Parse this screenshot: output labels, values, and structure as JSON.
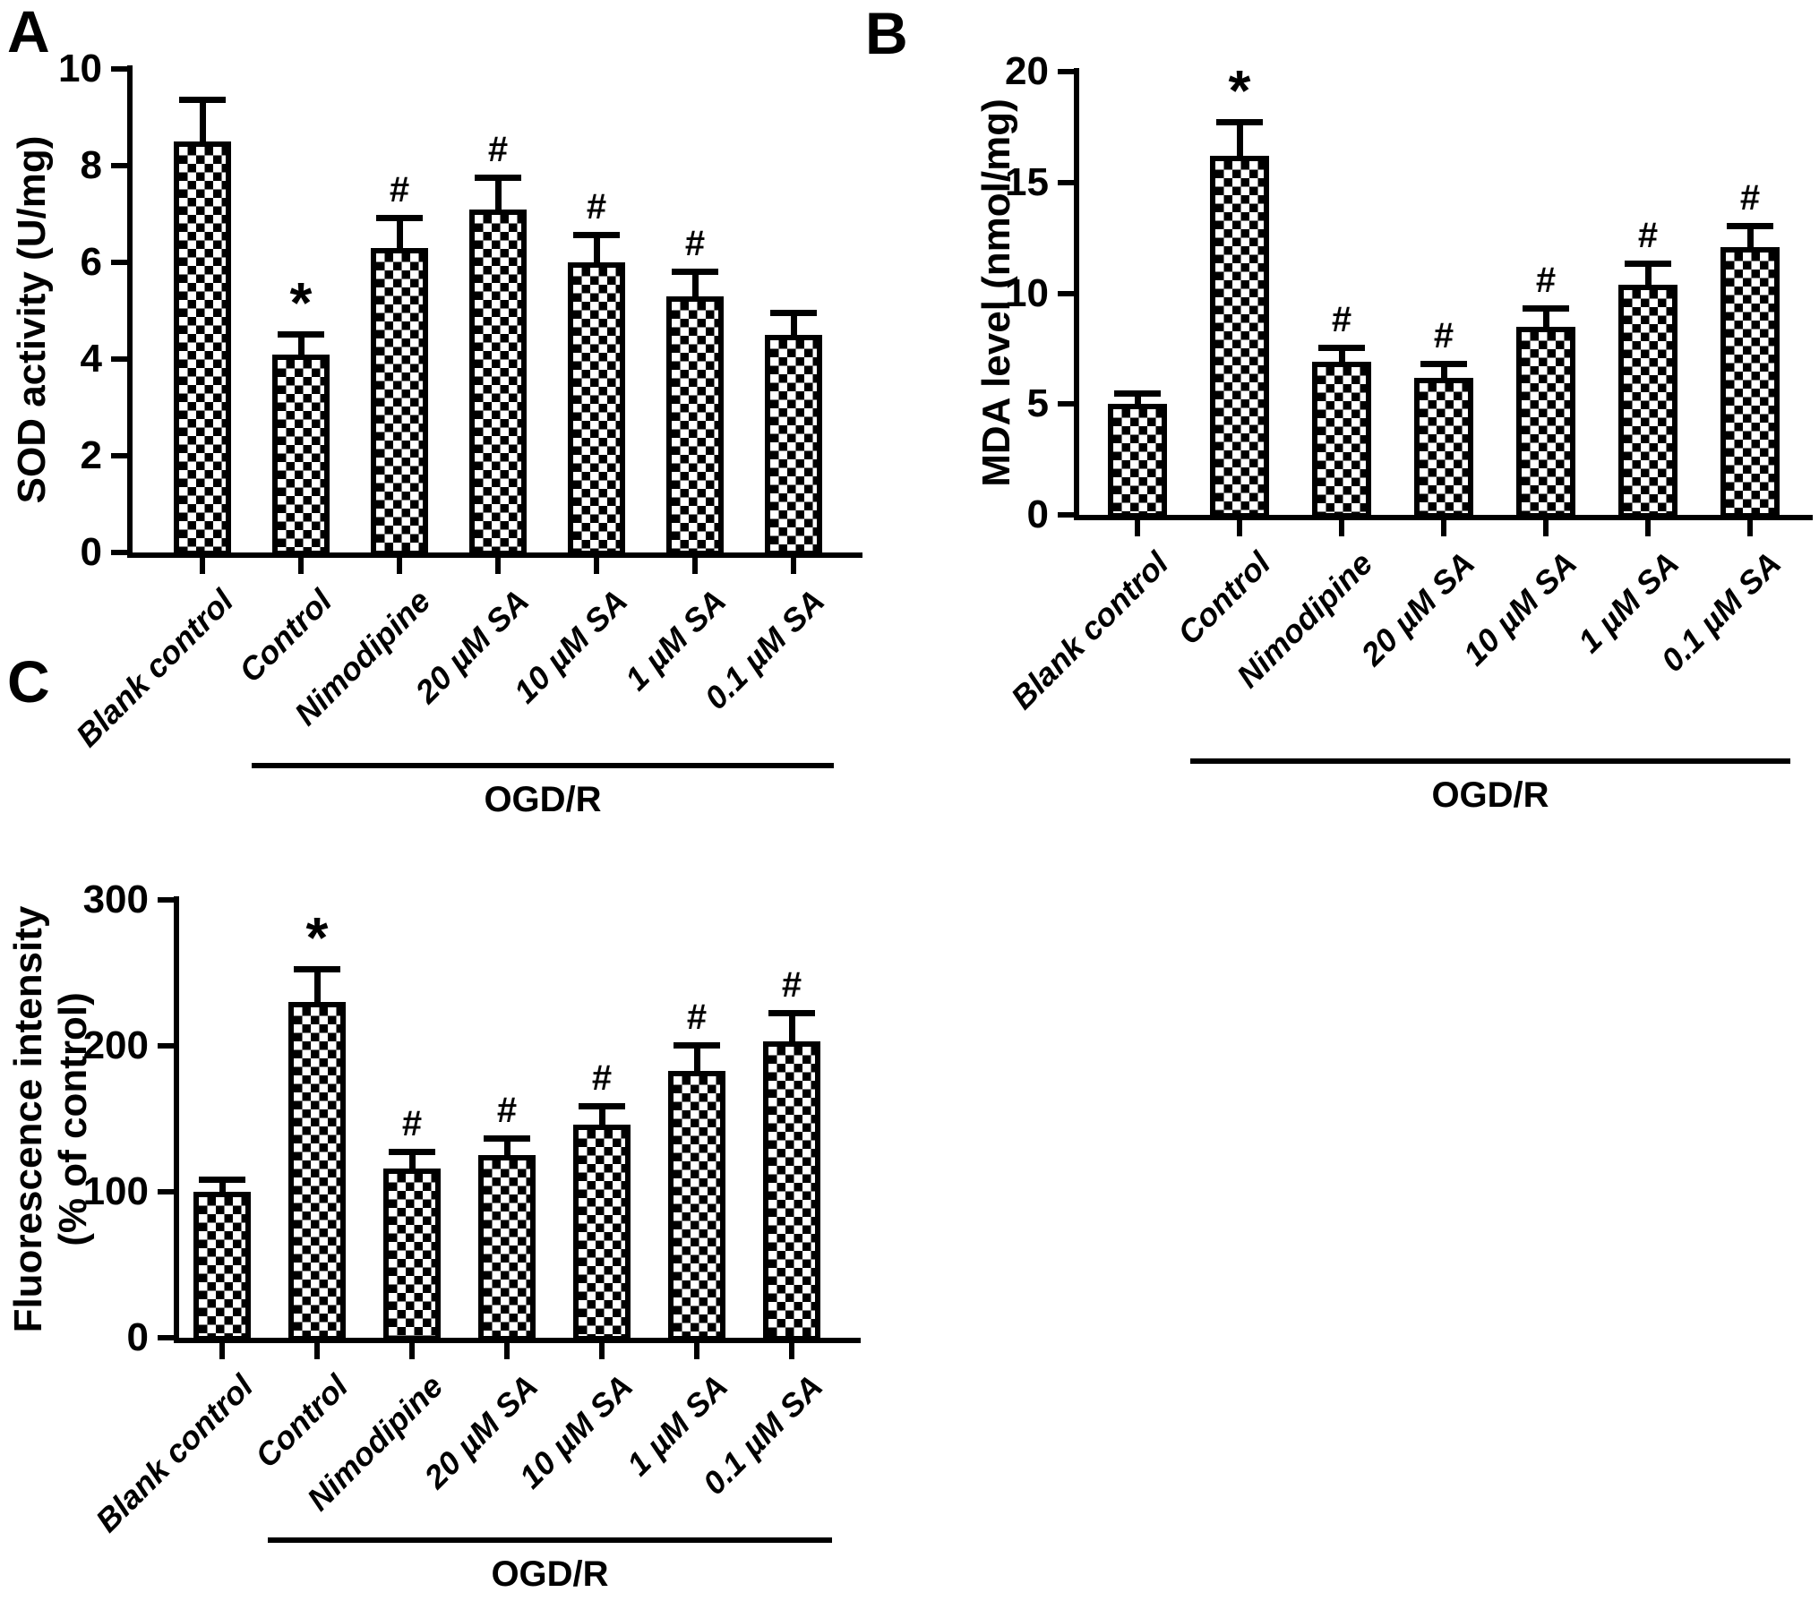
{
  "figure": {
    "background": "#ffffff",
    "ink_color": "#000000",
    "panel_letters": [
      "A",
      "B",
      "C"
    ],
    "group_label": "OGD/R"
  },
  "chart_data": [
    {
      "type": "bar",
      "panel_letter": "A",
      "title": "",
      "xlabel": "",
      "ylabel": "SOD activity (U/mg)",
      "ylabel_lines": [
        "SOD activity (U/mg)"
      ],
      "categories": [
        "Blank control",
        "Control",
        "Nimodipine",
        "20 µM SA",
        "10 µM SA",
        "1 µM SA",
        "0.1 µM SA"
      ],
      "values": [
        8.5,
        4.1,
        6.3,
        7.1,
        6.0,
        5.3,
        4.5
      ],
      "errors": [
        0.85,
        0.4,
        0.6,
        0.65,
        0.55,
        0.5,
        0.45
      ],
      "sig_markers": [
        "",
        "*",
        "#",
        "#",
        "#",
        "#",
        ""
      ],
      "ylim": [
        0,
        10
      ],
      "yticks": [
        0,
        2,
        4,
        6,
        8,
        10
      ],
      "grid": false,
      "legend": "none",
      "bar_fill": "black-white-checkerboard",
      "error_bars": "upper-only",
      "group_label": "OGD/R",
      "group_range": [
        1,
        6
      ]
    },
    {
      "type": "bar",
      "panel_letter": "B",
      "title": "",
      "xlabel": "",
      "ylabel": "MDA level (nmol/mg)",
      "ylabel_lines": [
        "MDA level (nmol/mg)"
      ],
      "categories": [
        "Blank control",
        "Control",
        "Nimodipine",
        "20 µM SA",
        "10 µM SA",
        "1 µM SA",
        "0.1 µM SA"
      ],
      "values": [
        5.0,
        16.2,
        6.9,
        6.2,
        8.5,
        10.4,
        12.1
      ],
      "errors": [
        0.45,
        1.5,
        0.6,
        0.6,
        0.8,
        0.9,
        0.9
      ],
      "sig_markers": [
        "",
        "*",
        "#",
        "#",
        "#",
        "#",
        "#"
      ],
      "ylim": [
        0,
        20
      ],
      "yticks": [
        0,
        5,
        10,
        15,
        20
      ],
      "grid": false,
      "legend": "none",
      "bar_fill": "black-white-checkerboard",
      "error_bars": "upper-only",
      "group_label": "OGD/R",
      "group_range": [
        1,
        6
      ]
    },
    {
      "type": "bar",
      "panel_letter": "C",
      "title": "",
      "xlabel": "",
      "ylabel": "Fluorescence intensity (% of control)",
      "ylabel_lines": [
        "Fluorescence intensity",
        "(% of control)"
      ],
      "categories": [
        "Blank control",
        "Control",
        "Nimodipine",
        "20 µM SA",
        "10 µM SA",
        "1 µM SA",
        "0.1 µM SA"
      ],
      "values": [
        100,
        230,
        116,
        125,
        146,
        183,
        203
      ],
      "errors": [
        8,
        22,
        11,
        11,
        12,
        17,
        19
      ],
      "sig_markers": [
        "",
        "*",
        "#",
        "#",
        "#",
        "#",
        "#"
      ],
      "ylim": [
        0,
        300
      ],
      "yticks": [
        0,
        100,
        200,
        300
      ],
      "grid": false,
      "legend": "none",
      "bar_fill": "black-white-checkerboard",
      "error_bars": "upper-only",
      "group_label": "OGD/R",
      "group_range": [
        1,
        6
      ]
    }
  ]
}
